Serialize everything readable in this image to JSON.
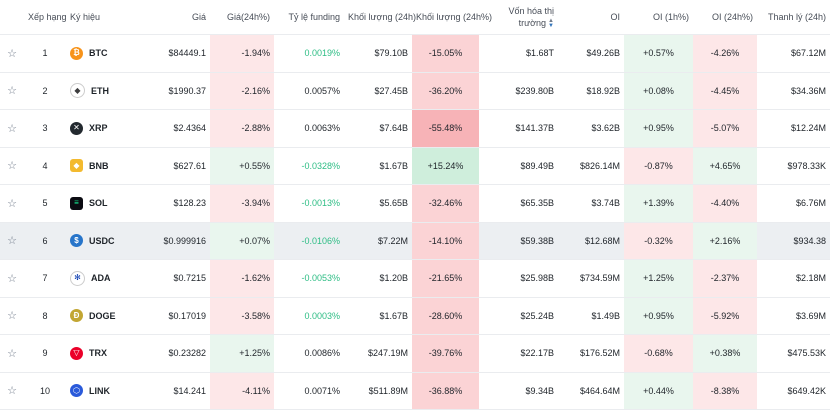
{
  "headers": {
    "rank": "Xếp hạng",
    "symbol": "Ký hiệu",
    "price": "Giá",
    "price_change": "Giá(24h%)",
    "funding": "Tỷ lệ funding",
    "volume": "Khối lượng (24h)",
    "volume_change": "Khối lượng (24h%)",
    "market_cap": "Vốn hóa thị trường",
    "oi": "OI",
    "oi_1h": "OI (1h%)",
    "oi_24h": "OI (24h%)",
    "liquidation": "Thanh lý (24h)"
  },
  "colors": {
    "green": "#2ebd85",
    "red": "#f6465d",
    "highlight": "#eceff2"
  },
  "rows": [
    {
      "rank": "1",
      "symbol": "BTC",
      "icon": "bitcoin-icon",
      "price": "$84449.1",
      "price_change": "-1.94%",
      "funding": "0.0019%",
      "volume": "$79.10B",
      "volume_change": "-15.05%",
      "market_cap": "$1.68T",
      "oi": "$49.26B",
      "oi_1h": "+0.57%",
      "oi_24h": "-4.26%",
      "liquidation": "$67.12M"
    },
    {
      "rank": "2",
      "symbol": "ETH",
      "icon": "ethereum-icon",
      "price": "$1990.37",
      "price_change": "-2.16%",
      "funding": "0.0057%",
      "volume": "$27.45B",
      "volume_change": "-36.20%",
      "market_cap": "$239.80B",
      "oi": "$18.92B",
      "oi_1h": "+0.08%",
      "oi_24h": "-4.45%",
      "liquidation": "$34.36M"
    },
    {
      "rank": "3",
      "symbol": "XRP",
      "icon": "xrp-icon",
      "price": "$2.4364",
      "price_change": "-2.88%",
      "funding": "0.0063%",
      "volume": "$7.64B",
      "volume_change": "-55.48%",
      "market_cap": "$141.37B",
      "oi": "$3.62B",
      "oi_1h": "+0.95%",
      "oi_24h": "-5.07%",
      "liquidation": "$12.24M"
    },
    {
      "rank": "4",
      "symbol": "BNB",
      "icon": "bnb-icon",
      "price": "$627.61",
      "price_change": "+0.55%",
      "funding": "-0.0328%",
      "volume": "$1.67B",
      "volume_change": "+15.24%",
      "market_cap": "$89.49B",
      "oi": "$826.14M",
      "oi_1h": "-0.87%",
      "oi_24h": "+4.65%",
      "liquidation": "$978.33K"
    },
    {
      "rank": "5",
      "symbol": "SOL",
      "icon": "solana-icon",
      "price": "$128.23",
      "price_change": "-3.94%",
      "funding": "-0.0013%",
      "volume": "$5.65B",
      "volume_change": "-32.46%",
      "market_cap": "$65.35B",
      "oi": "$3.74B",
      "oi_1h": "+1.39%",
      "oi_24h": "-4.40%",
      "liquidation": "$6.76M"
    },
    {
      "rank": "6",
      "symbol": "USDC",
      "icon": "usdc-icon",
      "price": "$0.999916",
      "price_change": "+0.07%",
      "funding": "-0.0106%",
      "volume": "$7.22M",
      "volume_change": "-14.10%",
      "market_cap": "$59.38B",
      "oi": "$12.68M",
      "oi_1h": "-0.32%",
      "oi_24h": "+2.16%",
      "liquidation": "$934.38"
    },
    {
      "rank": "7",
      "symbol": "ADA",
      "icon": "cardano-icon",
      "price": "$0.7215",
      "price_change": "-1.62%",
      "funding": "-0.0053%",
      "volume": "$1.20B",
      "volume_change": "-21.65%",
      "market_cap": "$25.98B",
      "oi": "$734.59M",
      "oi_1h": "+1.25%",
      "oi_24h": "-2.37%",
      "liquidation": "$2.18M"
    },
    {
      "rank": "8",
      "symbol": "DOGE",
      "icon": "dogecoin-icon",
      "price": "$0.17019",
      "price_change": "-3.58%",
      "funding": "0.0003%",
      "volume": "$1.67B",
      "volume_change": "-28.60%",
      "market_cap": "$25.24B",
      "oi": "$1.49B",
      "oi_1h": "+0.95%",
      "oi_24h": "-5.92%",
      "liquidation": "$3.69M"
    },
    {
      "rank": "9",
      "symbol": "TRX",
      "icon": "tron-icon",
      "price": "$0.23282",
      "price_change": "+1.25%",
      "funding": "0.0086%",
      "volume": "$247.19M",
      "volume_change": "-39.76%",
      "market_cap": "$22.17B",
      "oi": "$176.52M",
      "oi_1h": "-0.68%",
      "oi_24h": "+0.38%",
      "liquidation": "$475.53K"
    },
    {
      "rank": "10",
      "symbol": "LINK",
      "icon": "chainlink-icon",
      "price": "$14.241",
      "price_change": "-4.11%",
      "funding": "0.0071%",
      "volume": "$511.89M",
      "volume_change": "-36.88%",
      "market_cap": "$9.34B",
      "oi": "$464.64M",
      "oi_1h": "+0.44%",
      "oi_24h": "-8.38%",
      "liquidation": "$649.42K"
    }
  ]
}
